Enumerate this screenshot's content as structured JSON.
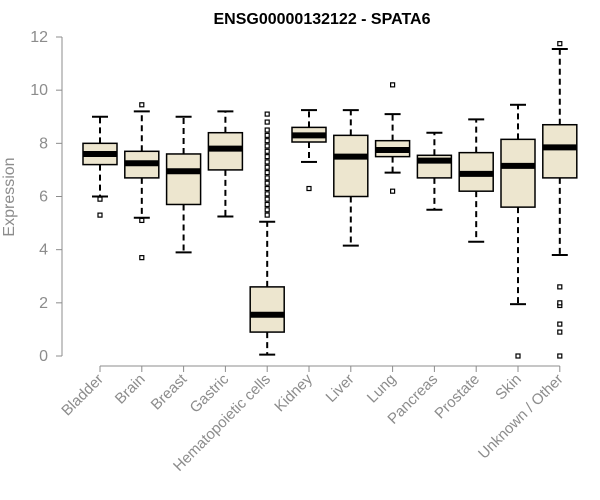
{
  "chart_data": {
    "type": "boxplot",
    "title": "ENSG00000132122 - SPATA6",
    "xlabel": "",
    "ylabel": "Expression",
    "ylim": [
      0,
      12
    ],
    "yticks": [
      0,
      2,
      4,
      6,
      8,
      10,
      12
    ],
    "colors": {
      "box_fill": "#ede6cf",
      "stroke": "#000000",
      "axis": "#8c8c8c"
    },
    "categories": [
      "Bladder",
      "Brain",
      "Breast",
      "Gastric",
      "Hematopoietic cells",
      "Kidney",
      "Liver",
      "Lung",
      "Pancreas",
      "Prostate",
      "Skin",
      "Unknown / Other"
    ],
    "boxes": [
      {
        "name": "Bladder",
        "whisker_low": 6.0,
        "q1": 7.2,
        "median": 7.6,
        "q3": 8.0,
        "whisker_high": 9.0,
        "outliers": [
          5.3,
          5.9
        ]
      },
      {
        "name": "Brain",
        "whisker_low": 5.2,
        "q1": 6.7,
        "median": 7.25,
        "q3": 7.7,
        "whisker_high": 9.2,
        "outliers": [
          3.7,
          5.1,
          9.45
        ]
      },
      {
        "name": "Breast",
        "whisker_low": 3.9,
        "q1": 5.7,
        "median": 6.95,
        "q3": 7.6,
        "whisker_high": 9.0,
        "outliers": []
      },
      {
        "name": "Gastric",
        "whisker_low": 5.25,
        "q1": 7.0,
        "median": 7.8,
        "q3": 8.4,
        "whisker_high": 9.2,
        "outliers": []
      },
      {
        "name": "Hematopoietic cells",
        "whisker_low": 0.05,
        "q1": 0.9,
        "median": 1.55,
        "q3": 2.6,
        "whisker_high": 5.05,
        "outliers": [
          5.3,
          5.5,
          5.7,
          5.9,
          6.1,
          6.3,
          6.5,
          6.7,
          6.9,
          7.1,
          7.3,
          7.5,
          7.7,
          7.9,
          8.1,
          8.3,
          8.5,
          8.8,
          9.1
        ]
      },
      {
        "name": "Kidney",
        "whisker_low": 7.3,
        "q1": 8.05,
        "median": 8.3,
        "q3": 8.6,
        "whisker_high": 9.25,
        "outliers": [
          6.3
        ]
      },
      {
        "name": "Liver",
        "whisker_low": 4.15,
        "q1": 6.0,
        "median": 7.5,
        "q3": 8.3,
        "whisker_high": 9.25,
        "outliers": []
      },
      {
        "name": "Lung",
        "whisker_low": 6.9,
        "q1": 7.5,
        "median": 7.75,
        "q3": 8.1,
        "whisker_high": 9.1,
        "outliers": [
          6.2,
          10.2
        ]
      },
      {
        "name": "Pancreas",
        "whisker_low": 5.5,
        "q1": 6.7,
        "median": 7.35,
        "q3": 7.55,
        "whisker_high": 8.4,
        "outliers": []
      },
      {
        "name": "Prostate",
        "whisker_low": 4.3,
        "q1": 6.2,
        "median": 6.85,
        "q3": 7.65,
        "whisker_high": 8.9,
        "outliers": []
      },
      {
        "name": "Skin",
        "whisker_low": 1.95,
        "q1": 5.6,
        "median": 7.15,
        "q3": 8.15,
        "whisker_high": 9.45,
        "outliers": [
          0.0
        ]
      },
      {
        "name": "Unknown / Other",
        "whisker_low": 3.8,
        "q1": 6.7,
        "median": 7.85,
        "q3": 8.7,
        "whisker_high": 11.55,
        "outliers": [
          0.0,
          0.9,
          1.2,
          1.9,
          2.0,
          2.6,
          11.75
        ]
      }
    ]
  }
}
